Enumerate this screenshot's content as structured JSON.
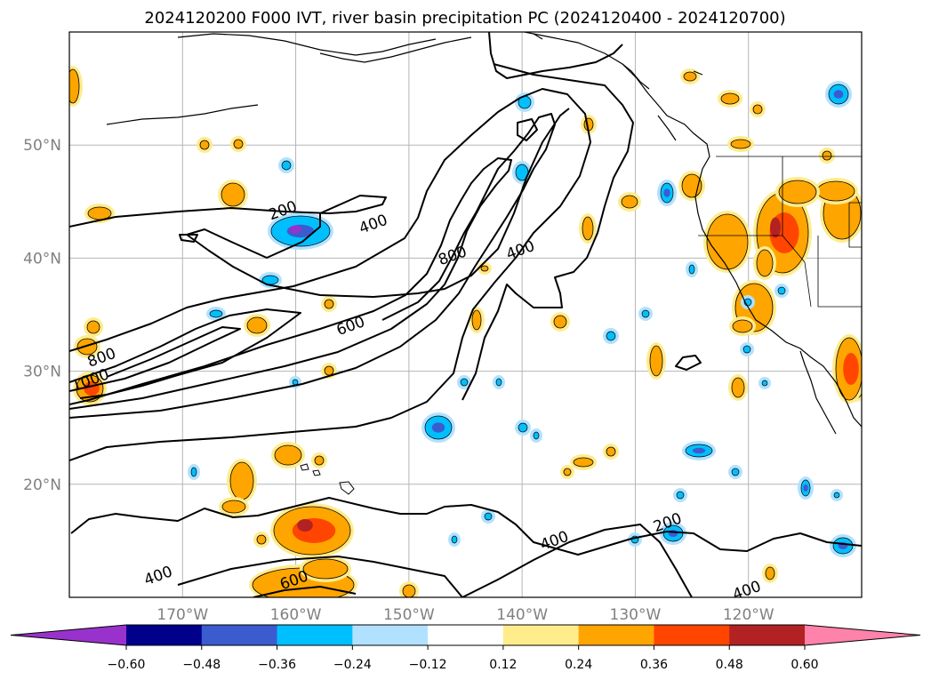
{
  "chart_data": {
    "type": "map-contour",
    "title": "2024120200 F000 IVT, river basin precipitation PC (2024120400 - 2024120700)",
    "longitude_range": [
      -180,
      -110
    ],
    "latitude_range": [
      10,
      60
    ],
    "x_ticks": [
      "170°W",
      "160°W",
      "150°W",
      "140°W",
      "130°W",
      "120°W"
    ],
    "x_tick_values": [
      -170,
      -160,
      -150,
      -140,
      -130,
      -120
    ],
    "y_ticks": [
      "50°N",
      "40°N",
      "30°N",
      "20°N"
    ],
    "y_tick_values": [
      50,
      40,
      30,
      20
    ],
    "grid": true,
    "ivt_contour_levels": [
      200,
      400,
      600,
      800,
      1000
    ],
    "contour_labels": [
      {
        "text": "200",
        "lon": -161,
        "lat": 43.8
      },
      {
        "text": "400",
        "lon": -153,
        "lat": 42.6
      },
      {
        "text": "800",
        "lon": -146,
        "lat": 39.8
      },
      {
        "text": "400",
        "lon": -140,
        "lat": 40.3
      },
      {
        "text": "600",
        "lon": -155,
        "lat": 33.6
      },
      {
        "text": "800",
        "lon": -177,
        "lat": 30.8
      },
      {
        "text": "1000",
        "lon": -178,
        "lat": 28.8
      },
      {
        "text": "200",
        "lon": -127,
        "lat": 16.2
      },
      {
        "text": "400",
        "lon": -137,
        "lat": 14.6
      },
      {
        "text": "400",
        "lon": -172,
        "lat": 11.5
      },
      {
        "text": "600",
        "lon": -160,
        "lat": 11.1
      },
      {
        "text": "400",
        "lon": -120,
        "lat": 10.2
      }
    ],
    "colorbar": {
      "tick_labels": [
        "−0.60",
        "−0.48",
        "−0.36",
        "−0.24",
        "−0.12",
        "0.12",
        "0.24",
        "0.36",
        "0.48",
        "0.60"
      ],
      "colors": [
        "#9932cc",
        "#00008b",
        "#3b5ccf",
        "#00bfff",
        "#b0e2ff",
        "#ffffff",
        "#ffec8b",
        "#ffa500",
        "#ff4500",
        "#b22222",
        "#ff82ab"
      ]
    }
  }
}
